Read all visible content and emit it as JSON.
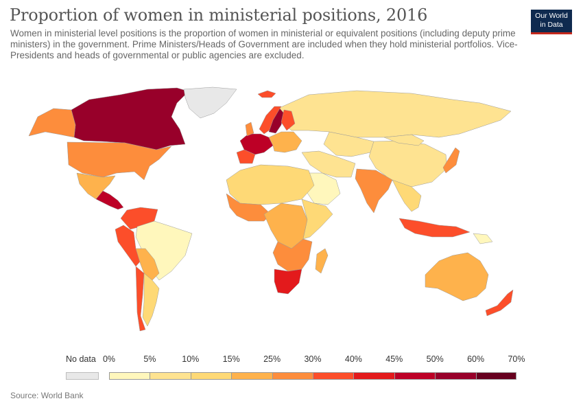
{
  "header": {
    "title": "Proportion of women in ministerial positions, 2016",
    "subtitle": "Women in ministerial level positions is the proportion of women in ministerial or equivalent positions (including deputy prime ministers) in the government. Prime Ministers/Heads of Government are included when they hold ministerial portfolios. Vice-Presidents and heads of governmental or public agencies are excluded.",
    "logo_line1": "Our World",
    "logo_line2": "in Data"
  },
  "colors": {
    "no_data": "#e8e8e8",
    "logo_bg": "#0f2a4f",
    "logo_accent": "#c4281c",
    "bins": [
      "#fff7bc",
      "#fee391",
      "#fed976",
      "#feb24c",
      "#fd8d3c",
      "#fc4e2a",
      "#e31a1c",
      "#bd0026",
      "#98002a",
      "#67001f"
    ]
  },
  "legend": {
    "no_data_label": "No data",
    "ticks": [
      "0%",
      "5%",
      "10%",
      "15%",
      "25%",
      "30%",
      "40%",
      "45%",
      "50%",
      "60%",
      "70%"
    ]
  },
  "map_regions": [
    {
      "name": "canada",
      "bin": 8
    },
    {
      "name": "alaska",
      "bin": 4
    },
    {
      "name": "united-states",
      "bin": 4
    },
    {
      "name": "mexico",
      "bin": 3
    },
    {
      "name": "central-america",
      "bin": 7
    },
    {
      "name": "greenland",
      "bin": -1
    },
    {
      "name": "colombia-venezuela",
      "bin": 5
    },
    {
      "name": "peru-ecuador",
      "bin": 5
    },
    {
      "name": "brazil",
      "bin": 0
    },
    {
      "name": "bolivia-paraguay",
      "bin": 3
    },
    {
      "name": "argentina",
      "bin": 2
    },
    {
      "name": "chile",
      "bin": 5
    },
    {
      "name": "russia",
      "bin": 1
    },
    {
      "name": "norway",
      "bin": 5
    },
    {
      "name": "sweden",
      "bin": 8
    },
    {
      "name": "finland",
      "bin": 5
    },
    {
      "name": "western-europe",
      "bin": 7
    },
    {
      "name": "spain",
      "bin": 5
    },
    {
      "name": "eastern-europe",
      "bin": 3
    },
    {
      "name": "iceland",
      "bin": 5
    },
    {
      "name": "uk-ireland",
      "bin": 4
    },
    {
      "name": "middle-east",
      "bin": 1
    },
    {
      "name": "saudi-arabia",
      "bin": 0
    },
    {
      "name": "central-asia",
      "bin": 1
    },
    {
      "name": "china",
      "bin": 1
    },
    {
      "name": "mongolia",
      "bin": 1
    },
    {
      "name": "india",
      "bin": 4
    },
    {
      "name": "southeast-asia",
      "bin": 2
    },
    {
      "name": "indonesia",
      "bin": 5
    },
    {
      "name": "japan",
      "bin": 4
    },
    {
      "name": "north-africa",
      "bin": 2
    },
    {
      "name": "west-africa",
      "bin": 4
    },
    {
      "name": "central-africa",
      "bin": 3
    },
    {
      "name": "east-africa",
      "bin": 2
    },
    {
      "name": "southern-africa",
      "bin": 4
    },
    {
      "name": "south-africa",
      "bin": 6
    },
    {
      "name": "madagascar",
      "bin": 3
    },
    {
      "name": "australia",
      "bin": 3
    },
    {
      "name": "new-zealand",
      "bin": 5
    },
    {
      "name": "papua-new-guinea",
      "bin": 0
    }
  ],
  "source": "Source: World Bank"
}
